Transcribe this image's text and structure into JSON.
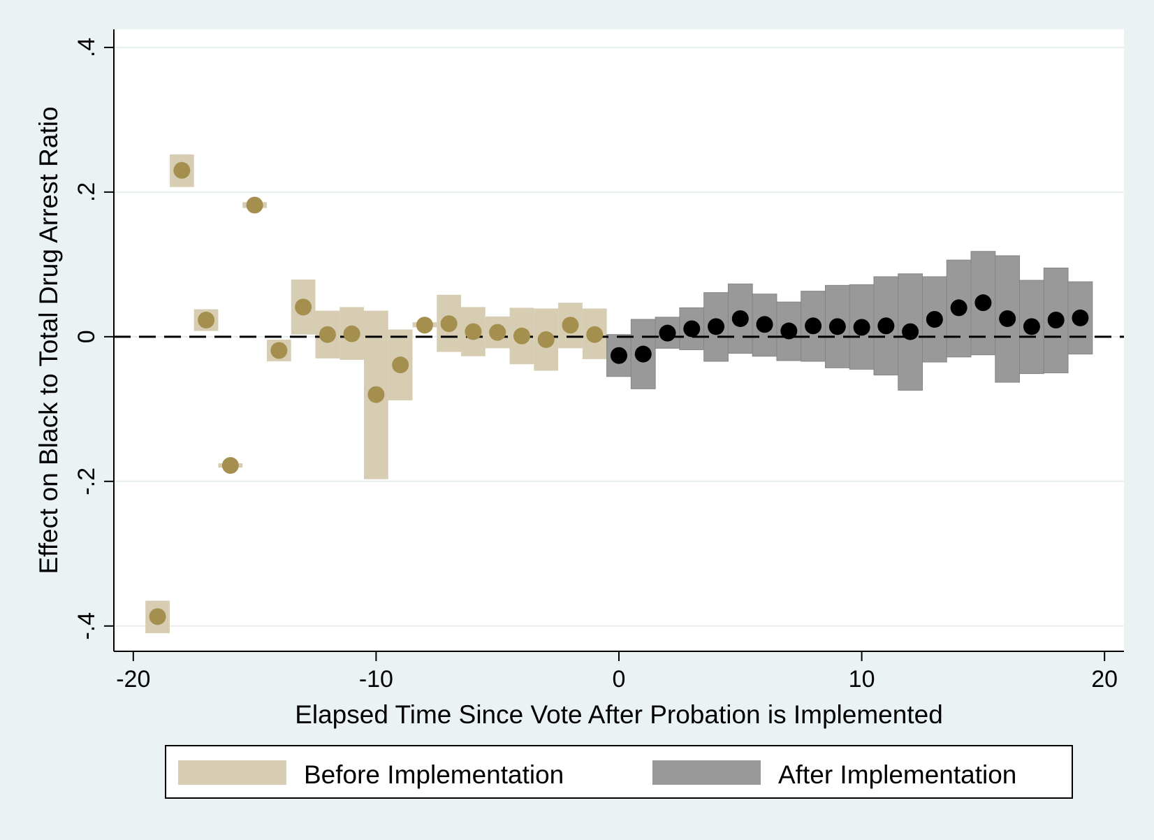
{
  "chart_data": {
    "type": "scatter",
    "title": "",
    "xlabel": "Elapsed Time Since Vote After Probation is Implemented",
    "ylabel": "Effect on Black to Total Drug Arrest Ratio",
    "xlim": [
      -20.8,
      20.8
    ],
    "ylim": [
      -0.435,
      0.425
    ],
    "x_ticks": [
      -20,
      -10,
      0,
      10,
      20
    ],
    "x_tick_labels": [
      "-20",
      "-10",
      "0",
      "10",
      "20"
    ],
    "y_ticks": [
      -0.4,
      -0.2,
      0,
      0.2,
      0.4
    ],
    "y_tick_labels": [
      "-.4",
      "-.2",
      "0",
      ".2",
      ".4"
    ],
    "grid": "horizontal",
    "reference_line": 0,
    "legend": {
      "position": "bottom",
      "entries": [
        "Before Implementation",
        "After Implementation"
      ]
    },
    "series": [
      {
        "name": "Before Implementation",
        "color": "#d6cdb3",
        "marker_color": "#a58f4e",
        "points": [
          {
            "x": -19,
            "y": -0.387,
            "lo": -0.41,
            "hi": -0.365
          },
          {
            "x": -18,
            "y": 0.23,
            "lo": 0.207,
            "hi": 0.252
          },
          {
            "x": -17,
            "y": 0.023,
            "lo": 0.008,
            "hi": 0.038
          },
          {
            "x": -16,
            "y": -0.178,
            "lo": -0.181,
            "hi": -0.175
          },
          {
            "x": -15,
            "y": 0.182,
            "lo": 0.178,
            "hi": 0.186
          },
          {
            "x": -14,
            "y": -0.019,
            "lo": -0.034,
            "hi": -0.004
          },
          {
            "x": -13,
            "y": 0.041,
            "lo": 0.003,
            "hi": 0.079
          },
          {
            "x": -12,
            "y": 0.003,
            "lo": -0.03,
            "hi": 0.036
          },
          {
            "x": -11,
            "y": 0.004,
            "lo": -0.032,
            "hi": 0.041
          },
          {
            "x": -10,
            "y": -0.08,
            "lo": -0.197,
            "hi": 0.036
          },
          {
            "x": -9,
            "y": -0.039,
            "lo": -0.088,
            "hi": 0.01
          },
          {
            "x": -8,
            "y": 0.016,
            "lo": 0.013,
            "hi": 0.02
          },
          {
            "x": -7,
            "y": 0.018,
            "lo": -0.021,
            "hi": 0.058
          },
          {
            "x": -6,
            "y": 0.007,
            "lo": -0.027,
            "hi": 0.041
          },
          {
            "x": -5,
            "y": 0.006,
            "lo": -0.016,
            "hi": 0.028
          },
          {
            "x": -4,
            "y": 0.001,
            "lo": -0.038,
            "hi": 0.04
          },
          {
            "x": -3,
            "y": -0.004,
            "lo": -0.047,
            "hi": 0.039
          },
          {
            "x": -2,
            "y": 0.016,
            "lo": -0.016,
            "hi": 0.047
          },
          {
            "x": -1,
            "y": 0.003,
            "lo": -0.031,
            "hi": 0.039
          }
        ]
      },
      {
        "name": "After Implementation",
        "color": "#999999",
        "marker_color": "#000000",
        "points": [
          {
            "x": 0,
            "y": -0.026,
            "lo": -0.055,
            "hi": 0.003
          },
          {
            "x": 1,
            "y": -0.024,
            "lo": -0.072,
            "hi": 0.024
          },
          {
            "x": 2,
            "y": 0.005,
            "lo": -0.016,
            "hi": 0.027
          },
          {
            "x": 3,
            "y": 0.011,
            "lo": -0.018,
            "hi": 0.04
          },
          {
            "x": 4,
            "y": 0.014,
            "lo": -0.034,
            "hi": 0.061
          },
          {
            "x": 5,
            "y": 0.025,
            "lo": -0.023,
            "hi": 0.073
          },
          {
            "x": 6,
            "y": 0.017,
            "lo": -0.027,
            "hi": 0.059
          },
          {
            "x": 7,
            "y": 0.008,
            "lo": -0.033,
            "hi": 0.048
          },
          {
            "x": 8,
            "y": 0.015,
            "lo": -0.034,
            "hi": 0.063
          },
          {
            "x": 9,
            "y": 0.014,
            "lo": -0.043,
            "hi": 0.071
          },
          {
            "x": 10,
            "y": 0.013,
            "lo": -0.045,
            "hi": 0.072
          },
          {
            "x": 11,
            "y": 0.015,
            "lo": -0.053,
            "hi": 0.083
          },
          {
            "x": 12,
            "y": 0.007,
            "lo": -0.074,
            "hi": 0.087
          },
          {
            "x": 13,
            "y": 0.024,
            "lo": -0.035,
            "hi": 0.083
          },
          {
            "x": 14,
            "y": 0.04,
            "lo": -0.028,
            "hi": 0.106
          },
          {
            "x": 15,
            "y": 0.047,
            "lo": -0.025,
            "hi": 0.118
          },
          {
            "x": 16,
            "y": 0.025,
            "lo": -0.063,
            "hi": 0.112
          },
          {
            "x": 17,
            "y": 0.014,
            "lo": -0.051,
            "hi": 0.078
          },
          {
            "x": 18,
            "y": 0.023,
            "lo": -0.05,
            "hi": 0.095
          },
          {
            "x": 19,
            "y": 0.026,
            "lo": -0.024,
            "hi": 0.076
          }
        ]
      }
    ]
  }
}
